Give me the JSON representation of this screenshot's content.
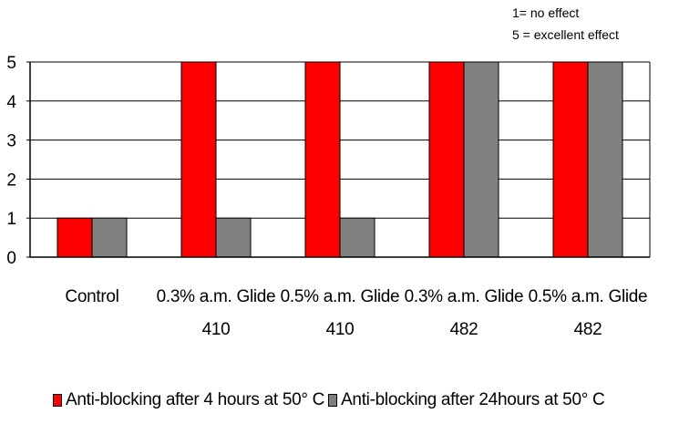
{
  "notes": {
    "line1": "1= no effect",
    "line2": "5 = excellent effect"
  },
  "chart_data": {
    "type": "bar",
    "title": "",
    "xlabel": "",
    "ylabel": "",
    "ylim": [
      0,
      5
    ],
    "yticks": [
      "0",
      "1",
      "2",
      "3",
      "4",
      "5"
    ],
    "grid": true,
    "legend_position": "bottom",
    "categories": [
      [
        "Control"
      ],
      [
        "0.3% a.m. Glide",
        "410"
      ],
      [
        "0.5% a.m. Glide",
        "410"
      ],
      [
        "0.3% a.m. Glide",
        "482"
      ],
      [
        "0.5% a.m. Glide",
        "482"
      ]
    ],
    "series": [
      {
        "name": "Anti-blocking after 4 hours at 50° C",
        "color": "#ff0000",
        "values": [
          1,
          5,
          5,
          5,
          5
        ]
      },
      {
        "name": "Anti-blocking after 24hours at 50° C",
        "color": "#808080",
        "values": [
          1,
          1,
          1,
          5,
          5
        ]
      }
    ]
  }
}
